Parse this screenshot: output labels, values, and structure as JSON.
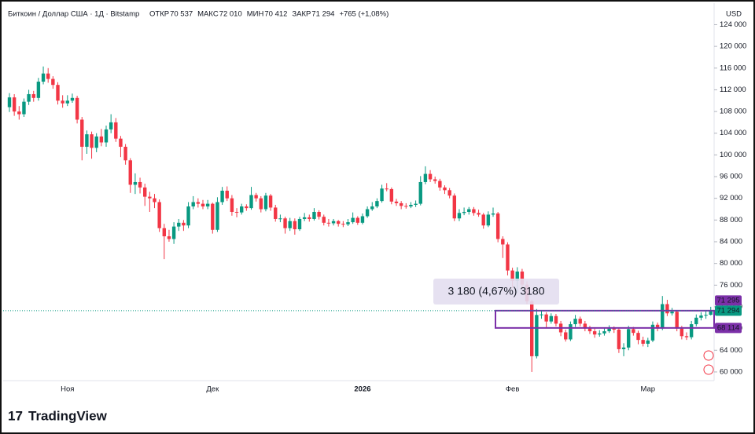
{
  "chart_data": {
    "type": "candlestick",
    "title": "Биткоин / Доллар США · 1Д · Bitstamp",
    "header": [
      {
        "label": "ОТКР",
        "value": "70 537"
      },
      {
        "label": "МАКС",
        "value": "72 010"
      },
      {
        "label": "МИН",
        "value": "70 412"
      },
      {
        "label": "ЗАКР",
        "value": "71 294"
      }
    ],
    "change": "+765 (+1,08%)",
    "currency": "USD",
    "logo": "TradingView",
    "measure_label": "3 180 (4,67%) 3180",
    "up_color": "#089981",
    "down_color": "#f23645",
    "ylim": [
      58400,
      124500
    ],
    "yticks": [
      {
        "value": 60000,
        "label": "60 000"
      },
      {
        "value": 64000,
        "label": "64 000"
      },
      {
        "value": 68000,
        "label": "68 000"
      },
      {
        "value": 72000,
        "label": "72 000"
      },
      {
        "value": 76000,
        "label": "76 000"
      },
      {
        "value": 80000,
        "label": "80 000"
      },
      {
        "value": 84000,
        "label": "84 000"
      },
      {
        "value": 88000,
        "label": "88 000"
      },
      {
        "value": 92000,
        "label": "92 000"
      },
      {
        "value": 96000,
        "label": "96 000"
      },
      {
        "value": 100000,
        "label": "100 000"
      },
      {
        "value": 104000,
        "label": "104 000"
      },
      {
        "value": 108000,
        "label": "108 000"
      },
      {
        "value": 112000,
        "label": "112 000"
      },
      {
        "value": 116000,
        "label": "116 000"
      },
      {
        "value": 120000,
        "label": "120 000"
      },
      {
        "value": 124000,
        "label": "124 000"
      }
    ],
    "levels": [
      {
        "value": 71295,
        "label": "71 295",
        "color": "#7b2fa8"
      },
      {
        "value": 71294,
        "label": "71 294",
        "color": "#089981"
      },
      {
        "value": 68114,
        "label": "68 114",
        "color": "#7b2fa8"
      }
    ],
    "categories": [
      null,
      null,
      null,
      null,
      null,
      null,
      null,
      null,
      null,
      null,
      null,
      null,
      "Ноя",
      null,
      null,
      null,
      null,
      null,
      null,
      null,
      null,
      null,
      null,
      null,
      null,
      null,
      null,
      null,
      null,
      null,
      null,
      null,
      null,
      null,
      null,
      null,
      null,
      null,
      null,
      null,
      null,
      null,
      "Дек",
      null,
      null,
      null,
      null,
      null,
      null,
      null,
      null,
      null,
      null,
      null,
      null,
      null,
      null,
      null,
      null,
      null,
      null,
      null,
      null,
      null,
      null,
      null,
      null,
      null,
      null,
      null,
      null,
      null,
      null,
      "2026",
      null,
      null,
      null,
      null,
      null,
      null,
      null,
      null,
      null,
      null,
      null,
      null,
      null,
      null,
      null,
      null,
      null,
      null,
      null,
      null,
      null,
      null,
      null,
      null,
      null,
      null,
      null,
      null,
      null,
      null,
      "Фев",
      null,
      null,
      null,
      null,
      null,
      null,
      null,
      null,
      null,
      null,
      null,
      null,
      null,
      null,
      null,
      null,
      null,
      null,
      null,
      null,
      null,
      null,
      null,
      null,
      null,
      null,
      null,
      "Мар",
      null,
      null,
      null,
      null,
      null,
      null,
      null,
      null,
      null,
      null,
      null,
      null,
      null
    ],
    "ohlc": [
      [
        108800,
        111400,
        107900,
        110600
      ],
      [
        110600,
        111200,
        107200,
        108000
      ],
      [
        108000,
        109000,
        106500,
        107500
      ],
      [
        107500,
        110400,
        107000,
        109800
      ],
      [
        109800,
        112000,
        109200,
        111200
      ],
      [
        111200,
        111800,
        109800,
        110500
      ],
      [
        110500,
        114200,
        110000,
        113500
      ],
      [
        113500,
        116300,
        113000,
        115000
      ],
      [
        115000,
        116000,
        113300,
        114000
      ],
      [
        114000,
        114500,
        112200,
        112900
      ],
      [
        112900,
        113400,
        109300,
        110000
      ],
      [
        110000,
        111000,
        108700,
        109500
      ],
      [
        109500,
        111000,
        109000,
        110000
      ],
      [
        110000,
        111300,
        109600,
        110500
      ],
      [
        110500,
        110900,
        105800,
        106500
      ],
      [
        106500,
        107000,
        99000,
        101500
      ],
      [
        101500,
        104500,
        100200,
        103800
      ],
      [
        103800,
        104300,
        99300,
        101300
      ],
      [
        101300,
        104000,
        100500,
        103400
      ],
      [
        103400,
        104800,
        101600,
        102300
      ],
      [
        102300,
        105400,
        101500,
        104700
      ],
      [
        104700,
        107500,
        104000,
        106000
      ],
      [
        106000,
        106800,
        102400,
        103000
      ],
      [
        103000,
        103500,
        99600,
        101500
      ],
      [
        101500,
        102000,
        98200,
        99000
      ],
      [
        99000,
        99400,
        93000,
        94500
      ],
      [
        94500,
        96600,
        92800,
        95000
      ],
      [
        95000,
        95800,
        92900,
        94000
      ],
      [
        94000,
        94700,
        90600,
        92300
      ],
      [
        92300,
        93200,
        89500,
        92000
      ],
      [
        92000,
        92800,
        90200,
        91300
      ],
      [
        91300,
        91800,
        85800,
        86500
      ],
      [
        86500,
        87300,
        80800,
        85000
      ],
      [
        85000,
        86200,
        84000,
        84500
      ],
      [
        84500,
        87600,
        83600,
        86800
      ],
      [
        86800,
        88200,
        86000,
        87500
      ],
      [
        87500,
        88000,
        86000,
        87000
      ],
      [
        87000,
        91300,
        86500,
        90500
      ],
      [
        90500,
        92400,
        90000,
        91300
      ],
      [
        91300,
        92000,
        90300,
        91000
      ],
      [
        91000,
        91700,
        90000,
        90500
      ],
      [
        90500,
        91700,
        90000,
        91000
      ],
      [
        91000,
        91200,
        85500,
        86200
      ],
      [
        86200,
        92200,
        85800,
        91300
      ],
      [
        91300,
        94100,
        90800,
        93400
      ],
      [
        93400,
        94200,
        91500,
        92000
      ],
      [
        92000,
        92600,
        88800,
        89500
      ],
      [
        89500,
        90200,
        88500,
        89400
      ],
      [
        89400,
        91000,
        89000,
        90500
      ],
      [
        90500,
        90900,
        89700,
        90200
      ],
      [
        90200,
        94100,
        89900,
        92600
      ],
      [
        92600,
        93000,
        91400,
        92000
      ],
      [
        92000,
        92400,
        89400,
        90000
      ],
      [
        90000,
        93000,
        89600,
        92500
      ],
      [
        92500,
        92800,
        89700,
        90300
      ],
      [
        90300,
        90800,
        87700,
        88200
      ],
      [
        88200,
        89000,
        87600,
        88300
      ],
      [
        88300,
        88600,
        85500,
        86500
      ],
      [
        86500,
        88400,
        86000,
        87800
      ],
      [
        87800,
        88300,
        85300,
        86300
      ],
      [
        86300,
        88600,
        86000,
        88200
      ],
      [
        88200,
        89300,
        87800,
        88500
      ],
      [
        88500,
        89000,
        87700,
        88200
      ],
      [
        88200,
        90200,
        87900,
        89500
      ],
      [
        89500,
        89800,
        88100,
        88600
      ],
      [
        88600,
        89000,
        87000,
        87500
      ],
      [
        87500,
        88200,
        86800,
        87400
      ],
      [
        87400,
        88200,
        87000,
        87800
      ],
      [
        87800,
        88000,
        86800,
        87300
      ],
      [
        87300,
        87800,
        86700,
        87200
      ],
      [
        87200,
        88200,
        86900,
        87600
      ],
      [
        87600,
        89400,
        87300,
        88400
      ],
      [
        88400,
        88700,
        87100,
        87500
      ],
      [
        87500,
        89200,
        87200,
        88700
      ],
      [
        88700,
        90500,
        88400,
        90000
      ],
      [
        90000,
        91300,
        89700,
        90500
      ],
      [
        90500,
        92000,
        90200,
        91500
      ],
      [
        91500,
        94500,
        91200,
        93800
      ],
      [
        93800,
        94800,
        93300,
        93700
      ],
      [
        93700,
        94000,
        90900,
        91400
      ],
      [
        91400,
        91900,
        90600,
        91100
      ],
      [
        91100,
        91500,
        90000,
        90600
      ],
      [
        90600,
        91100,
        90100,
        90500
      ],
      [
        90500,
        91300,
        90200,
        90800
      ],
      [
        90800,
        91600,
        90400,
        91000
      ],
      [
        91000,
        96100,
        90700,
        95000
      ],
      [
        95000,
        97900,
        94600,
        96500
      ],
      [
        96500,
        97200,
        95000,
        95500
      ],
      [
        95500,
        96000,
        94700,
        95200
      ],
      [
        95200,
        95600,
        93400,
        94000
      ],
      [
        94000,
        94400,
        92800,
        93500
      ],
      [
        93500,
        93900,
        92000,
        92500
      ],
      [
        92500,
        92900,
        87800,
        88300
      ],
      [
        88300,
        90000,
        87800,
        89300
      ],
      [
        89300,
        90300,
        88900,
        89500
      ],
      [
        89500,
        90400,
        89000,
        90000
      ],
      [
        90000,
        90400,
        88800,
        89300
      ],
      [
        89300,
        89900,
        88600,
        89000
      ],
      [
        89000,
        89300,
        86400,
        87000
      ],
      [
        87000,
        89600,
        86700,
        89000
      ],
      [
        89000,
        90300,
        88600,
        89200
      ],
      [
        89200,
        89500,
        83900,
        84500
      ],
      [
        84500,
        85000,
        81000,
        83500
      ],
      [
        83500,
        83900,
        77800,
        78700
      ],
      [
        78700,
        79200,
        75500,
        76800
      ],
      [
        76800,
        79300,
        74600,
        78500
      ],
      [
        78500,
        79000,
        75300,
        76100
      ],
      [
        76100,
        76700,
        72500,
        73000
      ],
      [
        73000,
        73300,
        60000,
        62900
      ],
      [
        62900,
        71600,
        62500,
        70500
      ],
      [
        70500,
        71300,
        69800,
        70600
      ],
      [
        70600,
        71000,
        68200,
        69300
      ],
      [
        69300,
        70800,
        68900,
        70300
      ],
      [
        70300,
        70700,
        68400,
        68900
      ],
      [
        68900,
        69400,
        66600,
        67300
      ],
      [
        67300,
        67800,
        65600,
        66000
      ],
      [
        66000,
        69300,
        65700,
        68800
      ],
      [
        68800,
        70500,
        68300,
        69800
      ],
      [
        69800,
        70200,
        68400,
        68900
      ],
      [
        68900,
        69400,
        67500,
        68000
      ],
      [
        68000,
        68500,
        67000,
        67500
      ],
      [
        67500,
        68000,
        66300,
        66900
      ],
      [
        66900,
        67700,
        66500,
        67100
      ],
      [
        67100,
        68100,
        66700,
        67500
      ],
      [
        67500,
        68600,
        67200,
        68000
      ],
      [
        68000,
        68400,
        67200,
        67800
      ],
      [
        67800,
        68100,
        63500,
        64200
      ],
      [
        64200,
        65300,
        62900,
        64500
      ],
      [
        64500,
        68500,
        64000,
        67900
      ],
      [
        67900,
        68300,
        66700,
        67200
      ],
      [
        67200,
        67600,
        65100,
        65900
      ],
      [
        65900,
        66500,
        64700,
        65200
      ],
      [
        65200,
        66300,
        64600,
        65800
      ],
      [
        65800,
        69300,
        65500,
        68700
      ],
      [
        68700,
        69100,
        67500,
        68000
      ],
      [
        68000,
        74000,
        67700,
        72500
      ],
      [
        72500,
        73300,
        70300,
        70800
      ],
      [
        70800,
        71800,
        70400,
        71100
      ],
      [
        71100,
        71400,
        67500,
        68000
      ],
      [
        68000,
        68500,
        66000,
        66600
      ],
      [
        66600,
        67300,
        65900,
        66400
      ],
      [
        66400,
        69400,
        66000,
        68800
      ],
      [
        68800,
        70600,
        68400,
        70000
      ],
      [
        70000,
        71000,
        69500,
        70400
      ],
      [
        70400,
        71200,
        69800,
        70529
      ],
      [
        70537,
        72010,
        70412,
        71294
      ]
    ]
  }
}
